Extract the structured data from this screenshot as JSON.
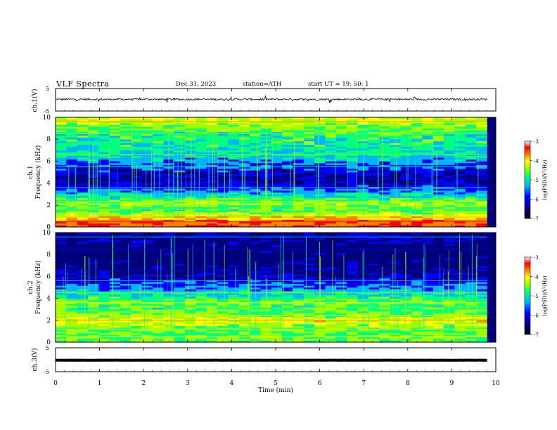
{
  "header": {
    "title": "VLF  Spectra",
    "date": "Dec.31, 2023",
    "station": "station=ATH",
    "start": "start  UT  =    19: 50: 1"
  },
  "chart_data": [
    {
      "type": "line",
      "panel": "ch1-waveform",
      "ylabel": "ch.1(V)",
      "yticks": [
        "5",
        "-5"
      ],
      "ylim": [
        -5,
        5
      ],
      "x_range_min": [
        0,
        9.8
      ],
      "baseline_v": 0.2,
      "noise_v": 0.4
    },
    {
      "type": "heatmap",
      "panel": "ch1-spectrogram",
      "ylabel": "ch.1\nFrequency  (kHz)",
      "ylabel_line1": "ch.1",
      "ylabel_line2": "Frequency  (kHz)",
      "yticks": [
        0,
        2,
        4,
        6,
        8,
        10
      ],
      "ylim_khz": [
        0,
        10
      ],
      "x_range_min": [
        0,
        9.8
      ],
      "colorbar": {
        "label": "log(PSD)(V²/Hz)",
        "ticks": [
          "-3",
          "-4",
          "-5",
          "-6",
          "-7"
        ],
        "range": [
          -7,
          -3
        ]
      },
      "bands_khz": [
        {
          "f": 0.5,
          "logpsd": -3.6
        },
        {
          "f": 0.9,
          "logpsd": -4.2
        },
        {
          "f": 1.6,
          "logpsd": -5.2
        },
        {
          "f": 2.1,
          "logpsd": -4.8
        },
        {
          "f": 2.3,
          "logpsd": -4.9
        },
        {
          "f": 3.6,
          "logpsd": -6.3
        },
        {
          "f": 4.4,
          "logpsd": -6.7
        },
        {
          "f": 5.5,
          "logpsd": -6.1
        },
        {
          "f": 6.6,
          "logpsd": -5.5
        },
        {
          "f": 8.5,
          "logpsd": -5.2
        },
        {
          "f": 9.6,
          "logpsd": -4.6
        }
      ]
    },
    {
      "type": "heatmap",
      "panel": "ch2-spectrogram",
      "ylabel_line1": "ch.2",
      "ylabel_line2": "Frequency  (kHz)",
      "yticks": [
        0,
        2,
        4,
        6,
        8,
        10
      ],
      "ylim_khz": [
        0,
        10
      ],
      "x_range_min": [
        0,
        9.8
      ],
      "colorbar": {
        "label": "log(PSD)(V²/Hz)",
        "ticks": [
          "-3",
          "-4",
          "-5",
          "-6",
          "-7"
        ],
        "range": [
          -7,
          -3
        ]
      },
      "bands_khz": [
        {
          "f": 0.5,
          "logpsd": -5.0
        },
        {
          "f": 1.2,
          "logpsd": -5.0
        },
        {
          "f": 2.0,
          "logpsd": -4.3
        },
        {
          "f": 2.4,
          "logpsd": -4.8
        },
        {
          "f": 3.2,
          "logpsd": -5.2
        },
        {
          "f": 3.6,
          "logpsd": -4.9
        },
        {
          "f": 4.5,
          "logpsd": -5.6
        },
        {
          "f": 5.6,
          "logpsd": -6.3
        },
        {
          "f": 6.5,
          "logpsd": -6.8
        },
        {
          "f": 8.5,
          "logpsd": -6.9
        },
        {
          "f": 9.6,
          "logpsd": -6.6
        }
      ]
    },
    {
      "type": "line",
      "panel": "ch3-waveform",
      "ylabel": "ch.3(V)",
      "yticks": [
        "5",
        "-5"
      ],
      "ylim": [
        -5,
        5
      ],
      "x_range_min": [
        0,
        9.8
      ],
      "baseline_v": -0.2,
      "noise_v": 0.05
    }
  ],
  "x_axis": {
    "label": "Time  (min)",
    "ticks": [
      "0",
      "1",
      "2",
      "3",
      "4",
      "5",
      "6",
      "7",
      "8",
      "9",
      "10"
    ],
    "range": [
      0,
      10
    ]
  },
  "colors": {
    "colormap": [
      "#00007f",
      "#0000ff",
      "#00b4ff",
      "#00ff80",
      "#a0ff00",
      "#ffff00",
      "#ff8000",
      "#ff0000",
      "#ffffff"
    ]
  }
}
